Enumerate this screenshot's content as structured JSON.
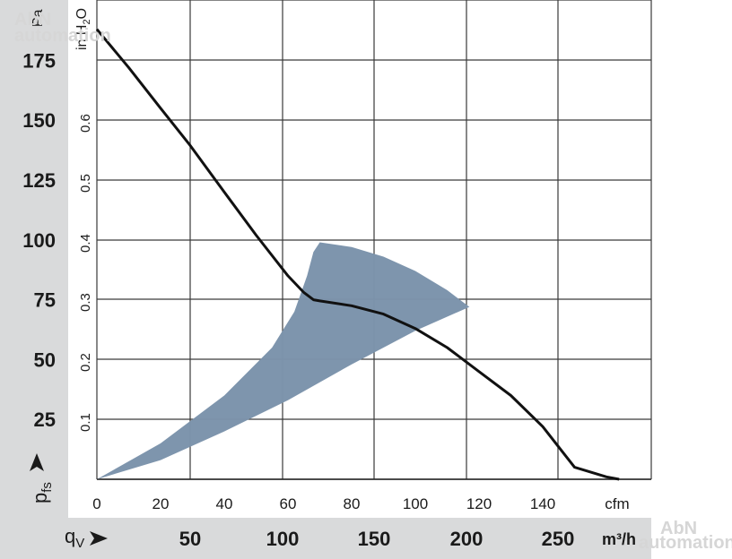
{
  "chart_data": {
    "type": "line",
    "x_axis_primary": {
      "unit": "cfm",
      "ticks": [
        0,
        20,
        40,
        60,
        80,
        100,
        120,
        140
      ],
      "range": [
        0,
        174
      ]
    },
    "x_axis_secondary": {
      "unit": "m³/h",
      "symbol": "q",
      "symbol_sub": "V",
      "ticks": [
        50,
        100,
        150,
        200,
        250
      ]
    },
    "y_axis_primary": {
      "unit": "Pa",
      "symbol": "p",
      "symbol_sub": "fs",
      "ticks": [
        25,
        50,
        75,
        100,
        125,
        150,
        175
      ],
      "range": [
        0,
        200
      ]
    },
    "y_axis_secondary": {
      "unit_prefix": "in H",
      "unit_sub": "2",
      "unit_suffix": "O",
      "ticks": [
        "0.1",
        "0.2",
        "0.3",
        "0.4",
        "0.5",
        "0.6"
      ]
    },
    "grid": true,
    "series": [
      {
        "x": [
          0,
          10,
          20,
          29,
          40,
          50,
          60,
          65,
          68,
          70,
          80,
          90,
          100,
          110,
          120,
          130,
          140,
          150,
          160,
          164
        ],
        "y": [
          188,
          172,
          155,
          140,
          120,
          102,
          85,
          78,
          75,
          74.5,
          72.5,
          69,
          63,
          55,
          45,
          35,
          22,
          5,
          1,
          0
        ]
      }
    ],
    "operating_area": {
      "color": "#7b93ab",
      "outline_x": [
        0,
        20,
        40,
        55,
        62,
        66,
        68,
        70,
        80,
        90,
        100,
        110,
        117,
        100,
        80,
        60,
        40,
        20,
        0
      ],
      "outline_y": [
        0,
        15,
        35,
        55,
        70,
        85,
        95,
        99,
        97,
        93,
        87,
        79,
        72,
        62,
        48,
        33,
        20,
        8,
        0
      ]
    },
    "colors": {
      "curve": "#111111",
      "grid": "#3a3a3a",
      "panel": "#d9dadb"
    }
  },
  "watermark": {
    "brand": "AbN",
    "sub": "automation"
  }
}
